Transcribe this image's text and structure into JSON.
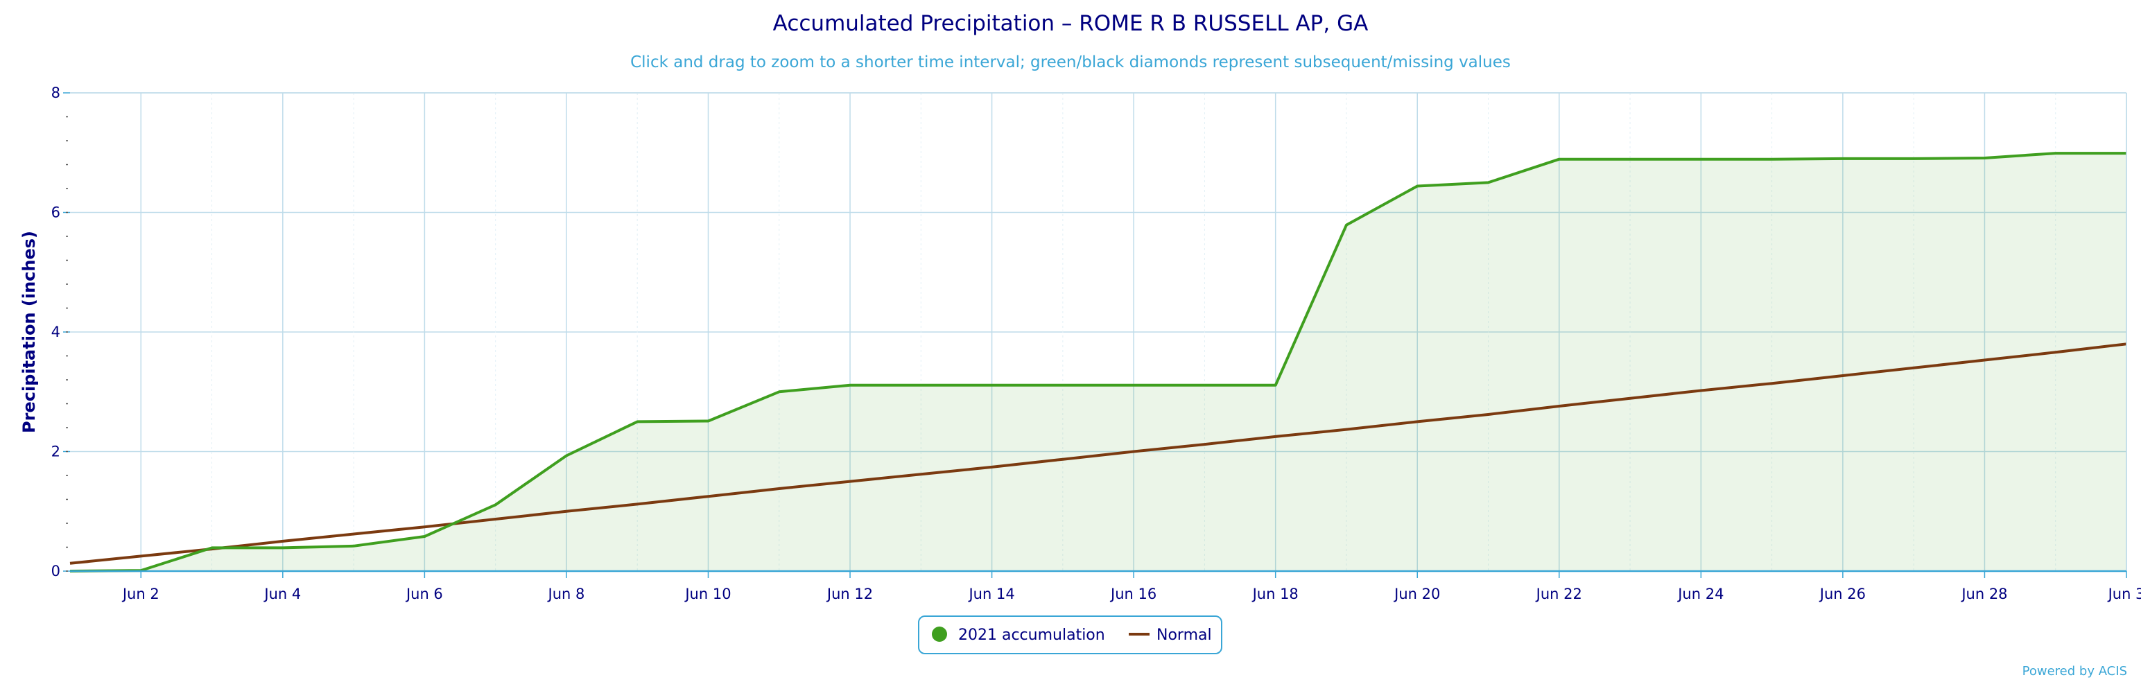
{
  "chart_data": {
    "type": "area",
    "title": "Accumulated Precipitation – ROME R B RUSSELL AP, GA",
    "subtitle": "Click and drag to zoom to a shorter time interval; green/black diamonds represent subsequent/missing values",
    "ylabel": "Precipitation (inches)",
    "xlabel": "",
    "xlim": [
      "Jun 1",
      "Jun 30"
    ],
    "ylim": [
      0,
      8
    ],
    "x_ticks": [
      "Jun 2",
      "Jun 4",
      "Jun 6",
      "Jun 8",
      "Jun 10",
      "Jun 12",
      "Jun 14",
      "Jun 16",
      "Jun 18",
      "Jun 20",
      "Jun 22",
      "Jun 24",
      "Jun 26",
      "Jun 28",
      "Jun 3"
    ],
    "y_ticks": [
      "0",
      "2",
      "4",
      "6",
      "8"
    ],
    "x": [
      1,
      2,
      3,
      4,
      5,
      6,
      7,
      8,
      9,
      10,
      11,
      12,
      13,
      14,
      15,
      16,
      17,
      18,
      19,
      20,
      21,
      22,
      23,
      24,
      25,
      26,
      27,
      28,
      29,
      30
    ],
    "series": [
      {
        "name": "2021 accumulation",
        "color": "#3f9f1f",
        "values": [
          0.0,
          0.01,
          0.39,
          0.39,
          0.42,
          0.58,
          1.11,
          1.93,
          2.5,
          2.51,
          3.0,
          3.11,
          3.11,
          3.11,
          3.11,
          3.11,
          3.11,
          3.11,
          5.79,
          6.44,
          6.5,
          6.89,
          6.89,
          6.89,
          6.89,
          6.9,
          6.9,
          6.91,
          6.99,
          6.99
        ]
      },
      {
        "name": "Normal",
        "color": "#7b3a10",
        "values": [
          0.13,
          0.25,
          0.37,
          0.5,
          0.62,
          0.74,
          0.87,
          1.0,
          1.12,
          1.25,
          1.38,
          1.5,
          1.62,
          1.74,
          1.87,
          2.0,
          2.12,
          2.25,
          2.37,
          2.5,
          2.62,
          2.76,
          2.89,
          3.02,
          3.14,
          3.27,
          3.4,
          3.53,
          3.66,
          3.8
        ]
      }
    ],
    "grid": true,
    "legend_position": "bottom-center"
  },
  "credit": "Powered by ACIS"
}
